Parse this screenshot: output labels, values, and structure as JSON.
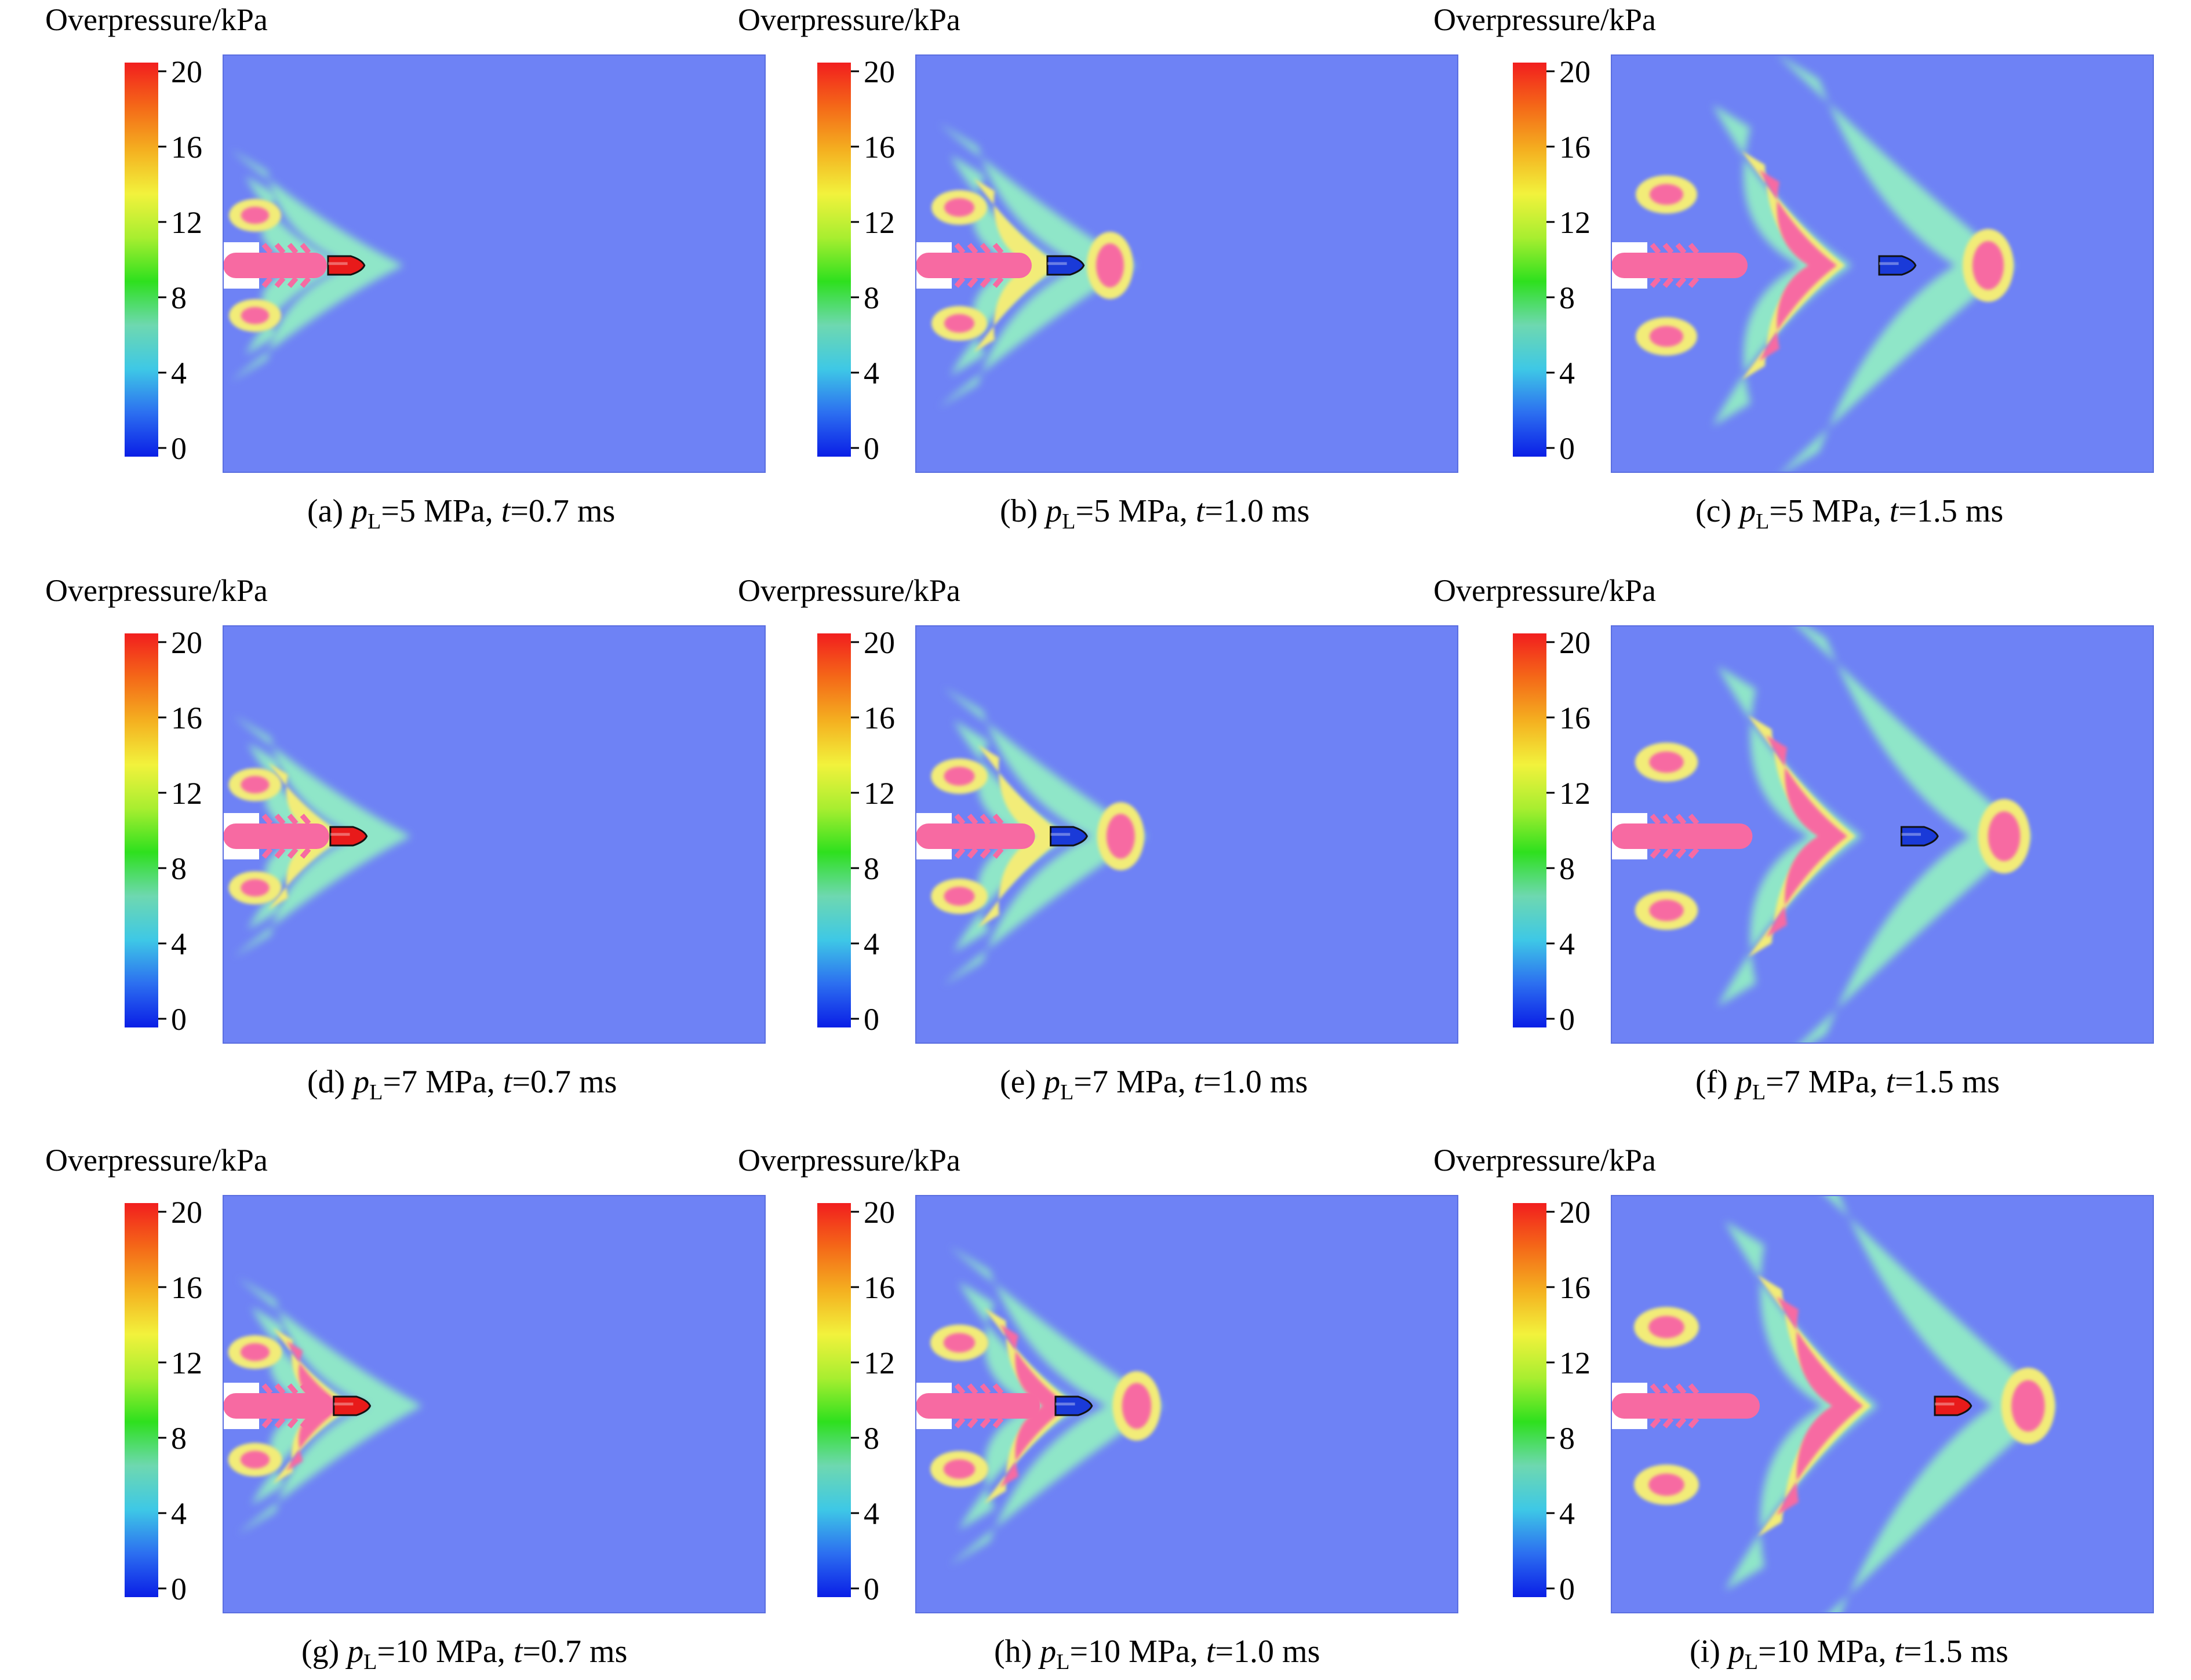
{
  "colorbar": {
    "title": "Overpressure/kPa",
    "ticks": [
      "20",
      "16",
      "12",
      "8",
      "4",
      "0"
    ],
    "min": 0,
    "max": 20,
    "colors": [
      "#0a1ee6",
      "#2c6ff0",
      "#3ec8e6",
      "#6ed8b0",
      "#2ee01e",
      "#a8ee30",
      "#f2f23c",
      "#f4b020",
      "#f46818",
      "#f21e1e"
    ]
  },
  "field_colors": {
    "background": "#6e82f5",
    "pale_wave": "#8fe6c8",
    "yellow_ring": "#f2ec78",
    "pink_core": "#f76aa2",
    "projectile_blue": "#1a3ad8",
    "projectile_red": "#e81a1a",
    "barrel": "#ffffff"
  },
  "panels": [
    {
      "letter": "(a)",
      "pressure": "5 MPa",
      "time": "0.7 ms",
      "stage": 0
    },
    {
      "letter": "(b)",
      "pressure": "5 MPa",
      "time": "1.0 ms",
      "stage": 1
    },
    {
      "letter": "(c)",
      "pressure": "5 MPa",
      "time": "1.5 ms",
      "stage": 2
    },
    {
      "letter": "(d)",
      "pressure": "7 MPa",
      "time": "0.7 ms",
      "stage": 0
    },
    {
      "letter": "(e)",
      "pressure": "7 MPa",
      "time": "1.0 ms",
      "stage": 1
    },
    {
      "letter": "(f)",
      "pressure": "7 MPa",
      "time": "1.5 ms",
      "stage": 2
    },
    {
      "letter": "(g)",
      "pressure": "10 MPa",
      "time": "0.7 ms",
      "stage": 0
    },
    {
      "letter": "(h)",
      "pressure": "10 MPa",
      "time": "1.0 ms",
      "stage": 1
    },
    {
      "letter": "(i)",
      "pressure": "10 MPa",
      "time": "1.5 ms",
      "stage": 2
    }
  ],
  "caption_parts": {
    "p_symbol": "p",
    "p_subscript": "L",
    "t_symbol": "t",
    "equals": "="
  }
}
